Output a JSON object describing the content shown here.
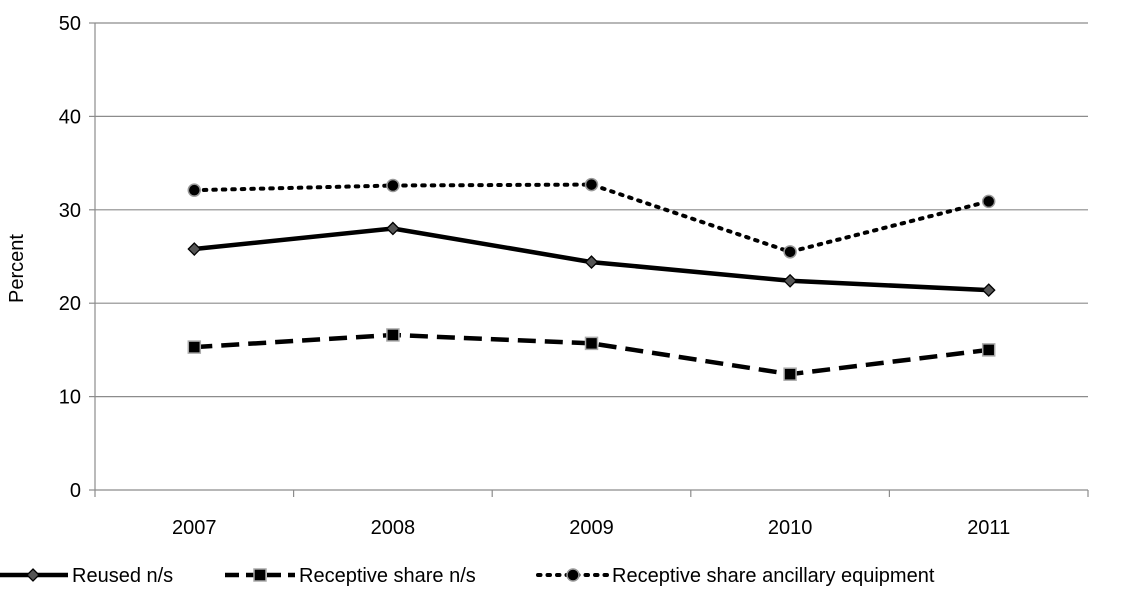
{
  "chart_data": {
    "type": "line",
    "title": "",
    "xlabel": "",
    "ylabel": "Percent",
    "ylim": [
      0,
      50
    ],
    "yticks": [
      0,
      10,
      20,
      30,
      40,
      50
    ],
    "categories": [
      "2007",
      "2008",
      "2009",
      "2010",
      "2011"
    ],
    "grid": "horizontal",
    "legend_position": "bottom",
    "series": [
      {
        "name": "Reused n/s",
        "values": [
          25.8,
          28.0,
          24.4,
          22.4,
          21.4
        ],
        "line_style": "solid",
        "marker": "diamond",
        "color": "#000000"
      },
      {
        "name": "Receptive share n/s",
        "values": [
          15.3,
          16.6,
          15.7,
          12.4,
          15.0
        ],
        "line_style": "dashed",
        "marker": "square",
        "color": "#000000"
      },
      {
        "name": "Receptive share ancillary equipment",
        "values": [
          32.1,
          32.6,
          32.7,
          25.5,
          30.9
        ],
        "line_style": "dotted",
        "marker": "circle",
        "color": "#000000"
      }
    ]
  }
}
